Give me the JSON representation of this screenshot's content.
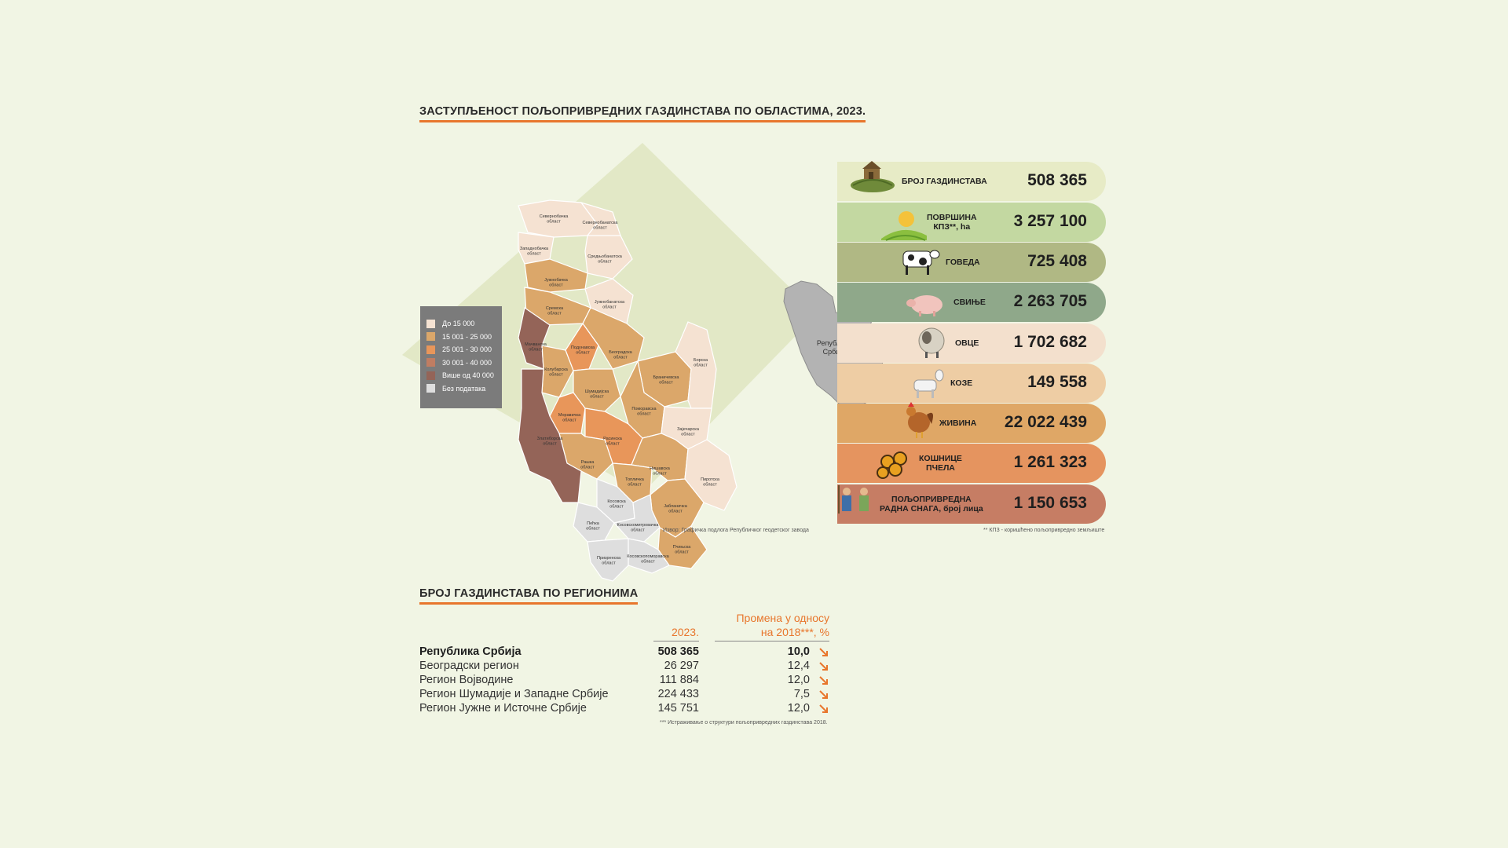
{
  "map_title": "ЗАСТУПЉЕНОСТ ПОЉОПРИВРЕДНИХ ГАЗДИНСТАВА ПО ОБЛАСТИМА, 2023.",
  "legend": [
    {
      "label": "До 15 000",
      "color": "#f5e2d2"
    },
    {
      "label": "15 001 - 25 000",
      "color": "#dba76a"
    },
    {
      "label": "25 001 - 30 000",
      "color": "#e8965a"
    },
    {
      "label": "30 001 - 40 000",
      "color": "#c07d62"
    },
    {
      "label": "Више од 40 000",
      "color": "#946458"
    },
    {
      "label": "Без података",
      "color": "#dedede"
    }
  ],
  "districts": [
    "Севернобачка област",
    "Севернобанатска област",
    "Западнобачка област",
    "Средњобанатска област",
    "Јужнобачка област",
    "Јужнобанатска област",
    "Сремска област",
    "Београдска област",
    "Мачванска област",
    "Подунавска област",
    "Браничевска област",
    "Борска област",
    "Колубарска област",
    "Шумадијска област",
    "Поморавска област",
    "Моравичка област",
    "Зајечарска област",
    "Расинска област",
    "Рашка област",
    "Нишавска област",
    "Златиборска област",
    "Топличка област",
    "Пиротска област",
    "Косовска област",
    "Јабланичка област",
    "Пећка област",
    "Косовскомитровачка област",
    "Пчињска област",
    "Призренска област",
    "Косовскопоморавска област"
  ],
  "map_source": "Извор: Графичка подлога Републичког геодетског завода",
  "inset_label": "Република Србија",
  "stats": [
    {
      "label": "БРОЈ ГАЗДИНСТАВА",
      "value": "508 365",
      "icon": "farm-icon",
      "color": "#e7ebc6"
    },
    {
      "label": "ПОВРШИНА КПЗ**, ha",
      "value": "3 257 100",
      "icon": "field-sun-icon",
      "color": "#c3d8a1"
    },
    {
      "label": "ГОВЕДА",
      "value": "725 408",
      "icon": "cow-icon",
      "color": "#b0b884"
    },
    {
      "label": "СВИЊЕ",
      "value": "2 263 705",
      "icon": "pig-icon",
      "color": "#8fa88a"
    },
    {
      "label": "ОВЦЕ",
      "value": "1 702 682",
      "icon": "sheep-icon",
      "color": "#f3e0cd"
    },
    {
      "label": "КОЗЕ",
      "value": "149 558",
      "icon": "goat-icon",
      "color": "#eecda4"
    },
    {
      "label": "ЖИВИНА",
      "value": "22 022 439",
      "icon": "chicken-icon",
      "color": "#dfa766"
    },
    {
      "label": "КОШНИЦЕ ПЧЕЛА",
      "value": "1 261 323",
      "icon": "beehive-icon",
      "color": "#e5945f"
    },
    {
      "label": "ПОЉОПРИВРЕДНА РАДНА СНАГА, број лица",
      "value": "1 150 653",
      "icon": "farmers-icon",
      "color": "#c67d64"
    }
  ],
  "stats_footnote": "** КПЗ - коришћено пољопривредно земљиште",
  "table_title": "БРОЈ ГАЗДИНСТАВА ПО РЕГИОНИМА",
  "table": {
    "col_2023": "2023.",
    "col_change_line1": "Промена у односу",
    "col_change_line2": "на 2018***, %",
    "rows": [
      {
        "name": "Република Србија",
        "v2023": "508 365",
        "change": "10,0",
        "trend": "down"
      },
      {
        "name": "Београдски регион",
        "v2023": "26 297",
        "change": "12,4",
        "trend": "down"
      },
      {
        "name": "Регион Војводине",
        "v2023": "111 884",
        "change": "12,0",
        "trend": "down"
      },
      {
        "name": "Регион Шумадије и Западне Србије",
        "v2023": "224 433",
        "change": "7,5",
        "trend": "down"
      },
      {
        "name": "Регион Јужне и Источне Србије",
        "v2023": "145 751",
        "change": "12,0",
        "trend": "down"
      }
    ]
  },
  "table_footnote": "*** Истраживање о структури пољопривредних газдинстава 2018."
}
